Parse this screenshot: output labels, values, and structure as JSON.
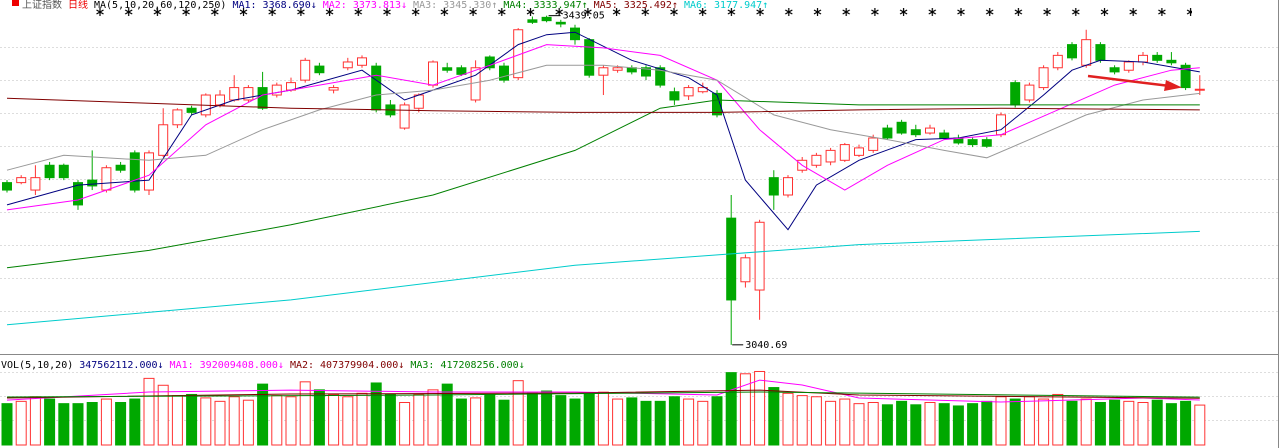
{
  "chart_data": {
    "type": "candlestick",
    "title": "上证指数",
    "period": "日线",
    "ma_label": "MA(5,10,20,60,120,250)",
    "ylim": [
      3032,
      3458
    ],
    "high_label": 3439.05,
    "low_label": 3040.69,
    "up_color": "#ff3232",
    "down_color": "#00a800",
    "candles": {
      "open": [
        3237,
        3237,
        3228,
        3258,
        3258,
        3237,
        3240,
        3228,
        3258,
        3273,
        3228,
        3270,
        3307,
        3327,
        3319,
        3331,
        3337,
        3337,
        3352,
        3343,
        3349,
        3361,
        3378,
        3349,
        3376,
        3379,
        3378,
        3331,
        3303,
        3327,
        3355,
        3376,
        3376,
        3337,
        3389,
        3378,
        3364,
        3434,
        3437,
        3431,
        3424,
        3410,
        3367,
        3373,
        3376,
        3376,
        3376,
        3347,
        3342,
        3347,
        3345,
        3194,
        3117,
        3107,
        3243,
        3222,
        3252,
        3258,
        3262,
        3264,
        3270,
        3276,
        3303,
        3310,
        3301,
        3297,
        3297,
        3291,
        3289,
        3289,
        3295,
        3358,
        3337,
        3352,
        3376,
        3404,
        3379,
        3404,
        3376,
        3373,
        3383,
        3391,
        3385,
        3379,
        3349
      ],
      "high": [
        3240,
        3246,
        3258,
        3262,
        3260,
        3240,
        3276,
        3258,
        3262,
        3276,
        3276,
        3327,
        3327,
        3330,
        3345,
        3349,
        3367,
        3355,
        3371,
        3358,
        3364,
        3388,
        3382,
        3355,
        3388,
        3391,
        3382,
        3337,
        3334,
        3345,
        3385,
        3382,
        3379,
        3385,
        3391,
        3382,
        3424,
        3438,
        3439.05,
        3434,
        3428,
        3412,
        3379,
        3379,
        3379,
        3379,
        3379,
        3352,
        3355,
        3358,
        3349,
        3222,
        3150,
        3192,
        3252,
        3246,
        3268,
        3273,
        3279,
        3285,
        3283,
        3295,
        3307,
        3313,
        3307,
        3307,
        3301,
        3295,
        3292,
        3292,
        3322,
        3361,
        3358,
        3379,
        3395,
        3407,
        3422,
        3407,
        3379,
        3385,
        3395,
        3395,
        3395,
        3382,
        3367
      ],
      "low": [
        3225,
        3235,
        3222,
        3240,
        3240,
        3204,
        3228,
        3225,
        3249,
        3225,
        3222,
        3268,
        3303,
        3319,
        3316,
        3328,
        3335,
        3334,
        3325,
        3340,
        3347,
        3358,
        3367,
        3345,
        3373,
        3376,
        3322,
        3316,
        3301,
        3322,
        3352,
        3370,
        3366,
        3334,
        3373,
        3358,
        3361,
        3429,
        3431,
        3425,
        3404,
        3364,
        3343,
        3370,
        3368,
        3361,
        3352,
        3331,
        3337,
        3345,
        3316,
        3040.69,
        3110,
        3071,
        3204,
        3219,
        3249,
        3255,
        3258,
        3262,
        3268,
        3273,
        3289,
        3295,
        3292,
        3295,
        3289,
        3283,
        3280,
        3279,
        3292,
        3328,
        3334,
        3349,
        3373,
        3385,
        3376,
        3382,
        3368,
        3370,
        3379,
        3382,
        3379,
        3349,
        3343
      ],
      "close": [
        3228,
        3243,
        3243,
        3243,
        3243,
        3210,
        3233,
        3255,
        3252,
        3228,
        3273,
        3307,
        3325,
        3322,
        3343,
        3343,
        3352,
        3352,
        3327,
        3355,
        3358,
        3385,
        3370,
        3352,
        3383,
        3388,
        3325,
        3319,
        3331,
        3343,
        3383,
        3373,
        3368,
        3376,
        3376,
        3361,
        3422,
        3431,
        3433,
        3429,
        3410,
        3367,
        3376,
        3376,
        3371,
        3366,
        3355,
        3337,
        3352,
        3352,
        3319,
        3095,
        3146,
        3189,
        3222,
        3243,
        3264,
        3270,
        3276,
        3283,
        3279,
        3291,
        3291,
        3297,
        3295,
        3303,
        3291,
        3285,
        3283,
        3281,
        3319,
        3331,
        3355,
        3376,
        3391,
        3388,
        3410,
        3385,
        3371,
        3383,
        3391,
        3385,
        3382,
        3352,
        3350
      ]
    },
    "series": [
      {
        "name": "MA1: 3368.690↓",
        "color": "#000080",
        "x": [
          0,
          5,
          10,
          13,
          16,
          20,
          25,
          28,
          30,
          33,
          36,
          38,
          40,
          44,
          48,
          50,
          52,
          55,
          57,
          60,
          64,
          67,
          70,
          73,
          75,
          77,
          80,
          84
        ],
        "values": [
          3210,
          3234,
          3240,
          3319,
          3337,
          3349,
          3373,
          3337,
          3349,
          3367,
          3404,
          3416,
          3419,
          3385,
          3364,
          3343,
          3240,
          3180,
          3234,
          3264,
          3289,
          3291,
          3301,
          3343,
          3373,
          3385,
          3383,
          3371
        ]
      },
      {
        "name": "MA2: 3373.813↓",
        "color": "#ff00ff",
        "x": [
          0,
          5,
          10,
          14,
          18,
          22,
          26,
          30,
          34,
          38,
          42,
          46,
          50,
          53,
          56,
          59,
          62,
          66,
          70,
          74,
          78,
          82,
          84
        ],
        "values": [
          3204,
          3216,
          3246,
          3307,
          3343,
          3355,
          3367,
          3355,
          3379,
          3404,
          3400,
          3391,
          3361,
          3301,
          3258,
          3228,
          3258,
          3289,
          3295,
          3325,
          3355,
          3373,
          3376
        ]
      },
      {
        "name": "MA3: 3345.330↑",
        "color": "#999999",
        "x": [
          0,
          4,
          10,
          14,
          18,
          22,
          26,
          30,
          34,
          38,
          42,
          46,
          50,
          54,
          58,
          62,
          66,
          69,
          72,
          76,
          80,
          84
        ],
        "values": [
          3252,
          3270,
          3264,
          3270,
          3301,
          3325,
          3343,
          3349,
          3361,
          3379,
          3379,
          3373,
          3361,
          3319,
          3301,
          3289,
          3276,
          3267,
          3289,
          3319,
          3337,
          3345
        ]
      },
      {
        "name": "MA4: 3333.947↑",
        "color": "#008000",
        "x": [
          0,
          10,
          20,
          30,
          40,
          46,
          50,
          60,
          70,
          84
        ],
        "values": [
          3134,
          3155,
          3186,
          3222,
          3276,
          3327,
          3337,
          3331,
          3331,
          3331
        ]
      },
      {
        "name": "MA5: 3325.492↑",
        "color": "#800000",
        "x": [
          0,
          10,
          20,
          30,
          40,
          50,
          60,
          70,
          84
        ],
        "values": [
          3339,
          3333,
          3327,
          3324,
          3322,
          3322,
          3325,
          3327,
          3325
        ]
      },
      {
        "name": "MA6: 3177.947↑",
        "color": "#00cccc",
        "x": [
          0,
          20,
          40,
          60,
          84
        ],
        "values": [
          3065,
          3095,
          3137,
          3162,
          3178
        ]
      }
    ],
    "volume": {
      "title": "VOL(5,10,20)",
      "label": "347562112.000↓",
      "ylim": [
        0,
        740000000
      ],
      "values": [
        360000000,
        380000000,
        420000000,
        400000000,
        360000000,
        360000000,
        370000000,
        400000000,
        370000000,
        400000000,
        580000000,
        520000000,
        430000000,
        440000000,
        410000000,
        380000000,
        420000000,
        390000000,
        530000000,
        430000000,
        420000000,
        550000000,
        480000000,
        440000000,
        420000000,
        450000000,
        540000000,
        440000000,
        370000000,
        440000000,
        480000000,
        530000000,
        400000000,
        410000000,
        440000000,
        390000000,
        560000000,
        450000000,
        470000000,
        430000000,
        400000000,
        440000000,
        460000000,
        400000000,
        410000000,
        380000000,
        380000000,
        420000000,
        400000000,
        380000000,
        420000000,
        630000000,
        620000000,
        640000000,
        500000000,
        450000000,
        430000000,
        420000000,
        380000000,
        400000000,
        360000000,
        370000000,
        350000000,
        380000000,
        350000000,
        370000000,
        360000000,
        340000000,
        360000000,
        380000000,
        420000000,
        400000000,
        420000000,
        400000000,
        440000000,
        380000000,
        400000000,
        370000000,
        390000000,
        380000000,
        370000000,
        390000000,
        360000000,
        380000000,
        347562112
      ],
      "series": [
        {
          "name": "MA1: 392009408.000↓",
          "color": "#ff00ff",
          "x": [
            0,
            10,
            20,
            30,
            40,
            50,
            53,
            56,
            60,
            70,
            80,
            84
          ],
          "values": [
            391000000,
            461000000,
            478000000,
            461000000,
            461000000,
            435000000,
            565000000,
            522000000,
            409000000,
            374000000,
            409000000,
            392000000
          ]
        },
        {
          "name": "MA2: 407379904.000↓",
          "color": "#800000",
          "x": [
            0,
            20,
            40,
            53,
            60,
            84
          ],
          "values": [
            409000000,
            444000000,
            452000000,
            478000000,
            435000000,
            407000000
          ]
        },
        {
          "name": "MA3: 417208256.000↓",
          "color": "#008000",
          "x": [
            0,
            30,
            53,
            84
          ],
          "values": [
            418000000,
            435000000,
            461000000,
            417000000
          ]
        }
      ]
    }
  }
}
